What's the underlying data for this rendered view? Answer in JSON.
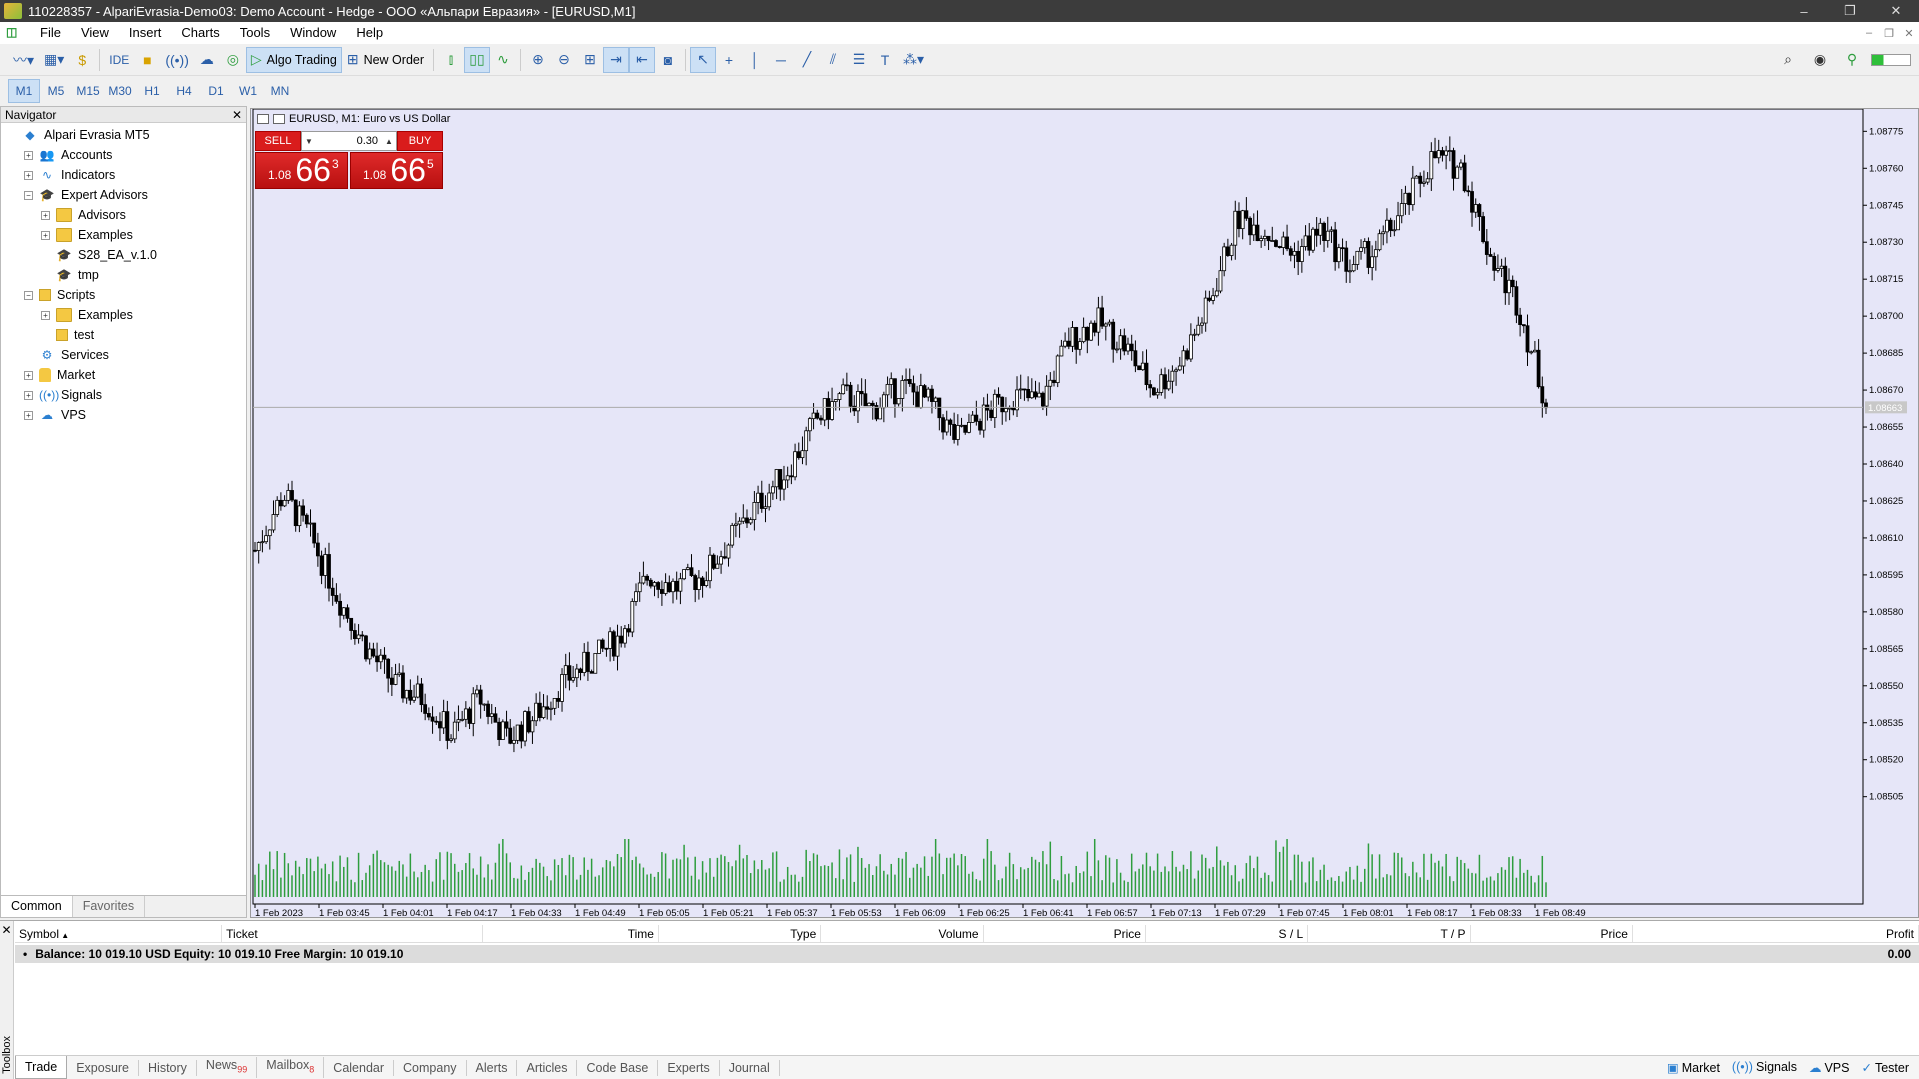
{
  "window": {
    "title": "110228357 - AlpariEvrasia-Demo03: Demo Account - Hedge - ООО «Альпари Евразия» - [EURUSD,M1]",
    "controls": [
      "–",
      "❐",
      "✕"
    ]
  },
  "menu": [
    "File",
    "View",
    "Insert",
    "Charts",
    "Tools",
    "Window",
    "Help"
  ],
  "toolbar": {
    "ide_label": "IDE",
    "algo_trading_label": "Algo Trading",
    "new_order_label": "New Order"
  },
  "timeframes": [
    "M1",
    "M5",
    "M15",
    "M30",
    "H1",
    "H4",
    "D1",
    "W1",
    "MN"
  ],
  "active_timeframe": "M1",
  "navigator": {
    "title": "Navigator",
    "items": [
      {
        "label": "Alpari Evrasia MT5",
        "level": 0,
        "icon": "broker-icon",
        "exp": ""
      },
      {
        "label": "Accounts",
        "level": 1,
        "icon": "accounts-icon",
        "exp": "+"
      },
      {
        "label": "Indicators",
        "level": 1,
        "icon": "indicators-icon",
        "exp": "+"
      },
      {
        "label": "Expert Advisors",
        "level": 1,
        "icon": "expert-advisors-icon",
        "exp": "−"
      },
      {
        "label": "Advisors",
        "level": 2,
        "icon": "folder-icon",
        "exp": "+"
      },
      {
        "label": "Examples",
        "level": 2,
        "icon": "folder-icon",
        "exp": "+"
      },
      {
        "label": "S28_EA_v.1.0",
        "level": 2,
        "icon": "ea-icon",
        "exp": ""
      },
      {
        "label": "tmp",
        "level": 2,
        "icon": "ea-icon",
        "exp": ""
      },
      {
        "label": "Scripts",
        "level": 1,
        "icon": "scripts-icon",
        "exp": "−"
      },
      {
        "label": "Examples",
        "level": 2,
        "icon": "folder-icon",
        "exp": "+"
      },
      {
        "label": "test",
        "level": 2,
        "icon": "script-icon",
        "exp": ""
      },
      {
        "label": "Services",
        "level": 1,
        "icon": "services-icon",
        "exp": ""
      },
      {
        "label": "Market",
        "level": 1,
        "icon": "market-icon",
        "exp": "+"
      },
      {
        "label": "Signals",
        "level": 1,
        "icon": "signals-icon",
        "exp": "+"
      },
      {
        "label": "VPS",
        "level": 1,
        "icon": "vps-icon",
        "exp": "+"
      }
    ],
    "tabs": [
      "Common",
      "Favorites"
    ]
  },
  "chart": {
    "title": "EURUSD, M1:  Euro vs US Dollar",
    "trade_panel": {
      "sell_label": "SELL",
      "buy_label": "BUY",
      "volume": "0.30",
      "sell_price_prefix": "1.08",
      "sell_price_big": "66",
      "sell_price_sup": "3",
      "buy_price_prefix": "1.08",
      "buy_price_big": "66",
      "buy_price_sup": "5"
    },
    "current_price_label": "1.08663",
    "colors": {
      "background": "#e6e6f8",
      "candle": "#000000",
      "volume": "#2e9d3e",
      "price_line": "#aaaaaa"
    }
  },
  "chart_data": {
    "type": "candlestick",
    "title": "EURUSD, M1:  Euro vs US Dollar",
    "y_ticks": [
      "1.08775",
      "1.08760",
      "1.08745",
      "1.08730",
      "1.08715",
      "1.08700",
      "1.08685",
      "1.08670",
      "1.08655",
      "1.08640",
      "1.08625",
      "1.08610",
      "1.08595",
      "1.08580",
      "1.08565",
      "1.08550",
      "1.08535",
      "1.08520",
      "1.08505"
    ],
    "x_ticks": [
      "1 Feb 2023",
      "1 Feb 03:45",
      "1 Feb 04:01",
      "1 Feb 04:17",
      "1 Feb 04:33",
      "1 Feb 04:49",
      "1 Feb 05:05",
      "1 Feb 05:21",
      "1 Feb 05:37",
      "1 Feb 05:53",
      "1 Feb 06:09",
      "1 Feb 06:25",
      "1 Feb 06:41",
      "1 Feb 06:57",
      "1 Feb 07:13",
      "1 Feb 07:29",
      "1 Feb 07:45",
      "1 Feb 08:01",
      "1 Feb 08:17",
      "1 Feb 08:33",
      "1 Feb 08:49"
    ],
    "ylim": [
      1.085,
      1.0878
    ],
    "close_path": [
      1.08605,
      1.08628,
      1.0861,
      1.08585,
      1.08565,
      1.0855,
      1.08545,
      1.0853,
      1.08545,
      1.08528,
      1.08538,
      1.08552,
      1.0856,
      1.0857,
      1.08595,
      1.0859,
      1.08595,
      1.0861,
      1.08625,
      1.08638,
      1.08658,
      1.08668,
      1.08662,
      1.08672,
      1.08665,
      1.0865,
      1.0866,
      1.08668,
      1.08665,
      1.0869,
      1.08698,
      1.08688,
      1.0867,
      1.08682,
      1.08705,
      1.0874,
      1.08735,
      1.08725,
      1.08735,
      1.0872,
      1.08728,
      1.08745,
      1.08765,
      1.0876,
      1.08725,
      1.08705,
      1.08665
    ],
    "volume_range": [
      0,
      1
    ]
  },
  "toolbox": {
    "label": "Toolbox",
    "columns": [
      "Symbol",
      "Ticket",
      "Time",
      "Type",
      "Volume",
      "Price",
      "S / L",
      "T / P",
      "Price",
      "Profit"
    ],
    "balance_text": "Balance: 10 019.10 USD  Equity: 10 019.10  Free Margin: 10 019.10",
    "balance_profit": "0.00",
    "tabs": [
      {
        "label": "Trade",
        "badge": ""
      },
      {
        "label": "Exposure",
        "badge": ""
      },
      {
        "label": "History",
        "badge": ""
      },
      {
        "label": "News",
        "badge": "99"
      },
      {
        "label": "Mailbox",
        "badge": "8"
      },
      {
        "label": "Calendar",
        "badge": ""
      },
      {
        "label": "Company",
        "badge": ""
      },
      {
        "label": "Alerts",
        "badge": ""
      },
      {
        "label": "Articles",
        "badge": ""
      },
      {
        "label": "Code Base",
        "badge": ""
      },
      {
        "label": "Experts",
        "badge": ""
      },
      {
        "label": "Journal",
        "badge": ""
      }
    ],
    "status": [
      "Market",
      "Signals",
      "VPS",
      "Tester"
    ]
  }
}
